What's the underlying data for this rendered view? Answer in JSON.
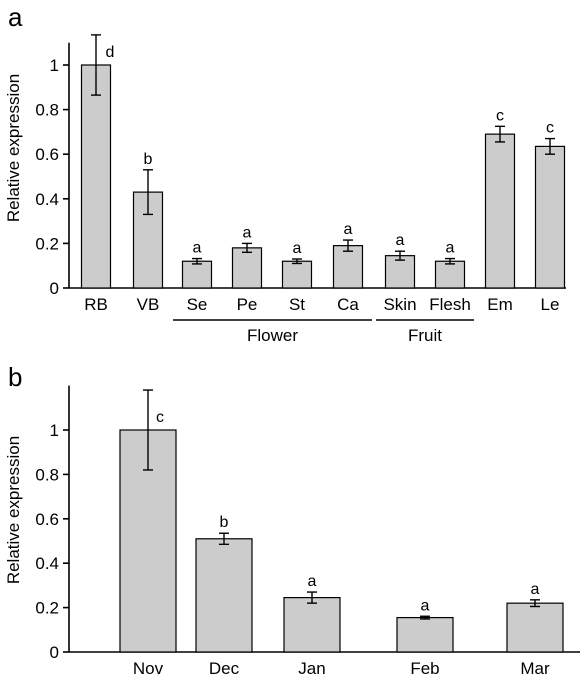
{
  "chart_data": [
    {
      "panel": "a",
      "type": "bar",
      "ylabel": "Relative expression",
      "ylim": [
        0,
        1.1
      ],
      "yticks": [
        0,
        0.2,
        0.4,
        0.6,
        0.8,
        1
      ],
      "ytick_labels": [
        "0",
        "0.2",
        "0.4",
        "0.6",
        "0.8",
        "1"
      ],
      "categories": [
        "RB",
        "VB",
        "Se",
        "Pe",
        "St",
        "Ca",
        "Skin",
        "Flesh",
        "Em",
        "Le"
      ],
      "values": [
        1.0,
        0.43,
        0.12,
        0.18,
        0.12,
        0.19,
        0.145,
        0.12,
        0.69,
        0.635
      ],
      "errors": [
        0.135,
        0.1,
        0.012,
        0.02,
        0.01,
        0.025,
        0.02,
        0.012,
        0.035,
        0.035
      ],
      "significance": [
        "d",
        "b",
        "a",
        "a",
        "a",
        "a",
        "a",
        "a",
        "c",
        "c"
      ],
      "groups": [
        {
          "label": "Flower",
          "from": 2,
          "to": 5
        },
        {
          "label": "Fruit",
          "from": 6,
          "to": 7
        }
      ],
      "grid": false
    },
    {
      "panel": "b",
      "type": "bar",
      "ylabel": "Relative expression",
      "ylim": [
        0,
        1.2
      ],
      "yticks": [
        0,
        0.2,
        0.4,
        0.6,
        0.8,
        1
      ],
      "ytick_labels": [
        "0",
        "0.2",
        "0.4",
        "0.6",
        "0.8",
        "1"
      ],
      "categories": [
        "Nov",
        "Dec",
        "Jan",
        "Feb",
        "Mar"
      ],
      "values": [
        1.0,
        0.51,
        0.245,
        0.155,
        0.22
      ],
      "errors": [
        0.18,
        0.025,
        0.025,
        0.006,
        0.015
      ],
      "significance": [
        "c",
        "b",
        "a",
        "a",
        "a"
      ],
      "grid": false
    }
  ]
}
